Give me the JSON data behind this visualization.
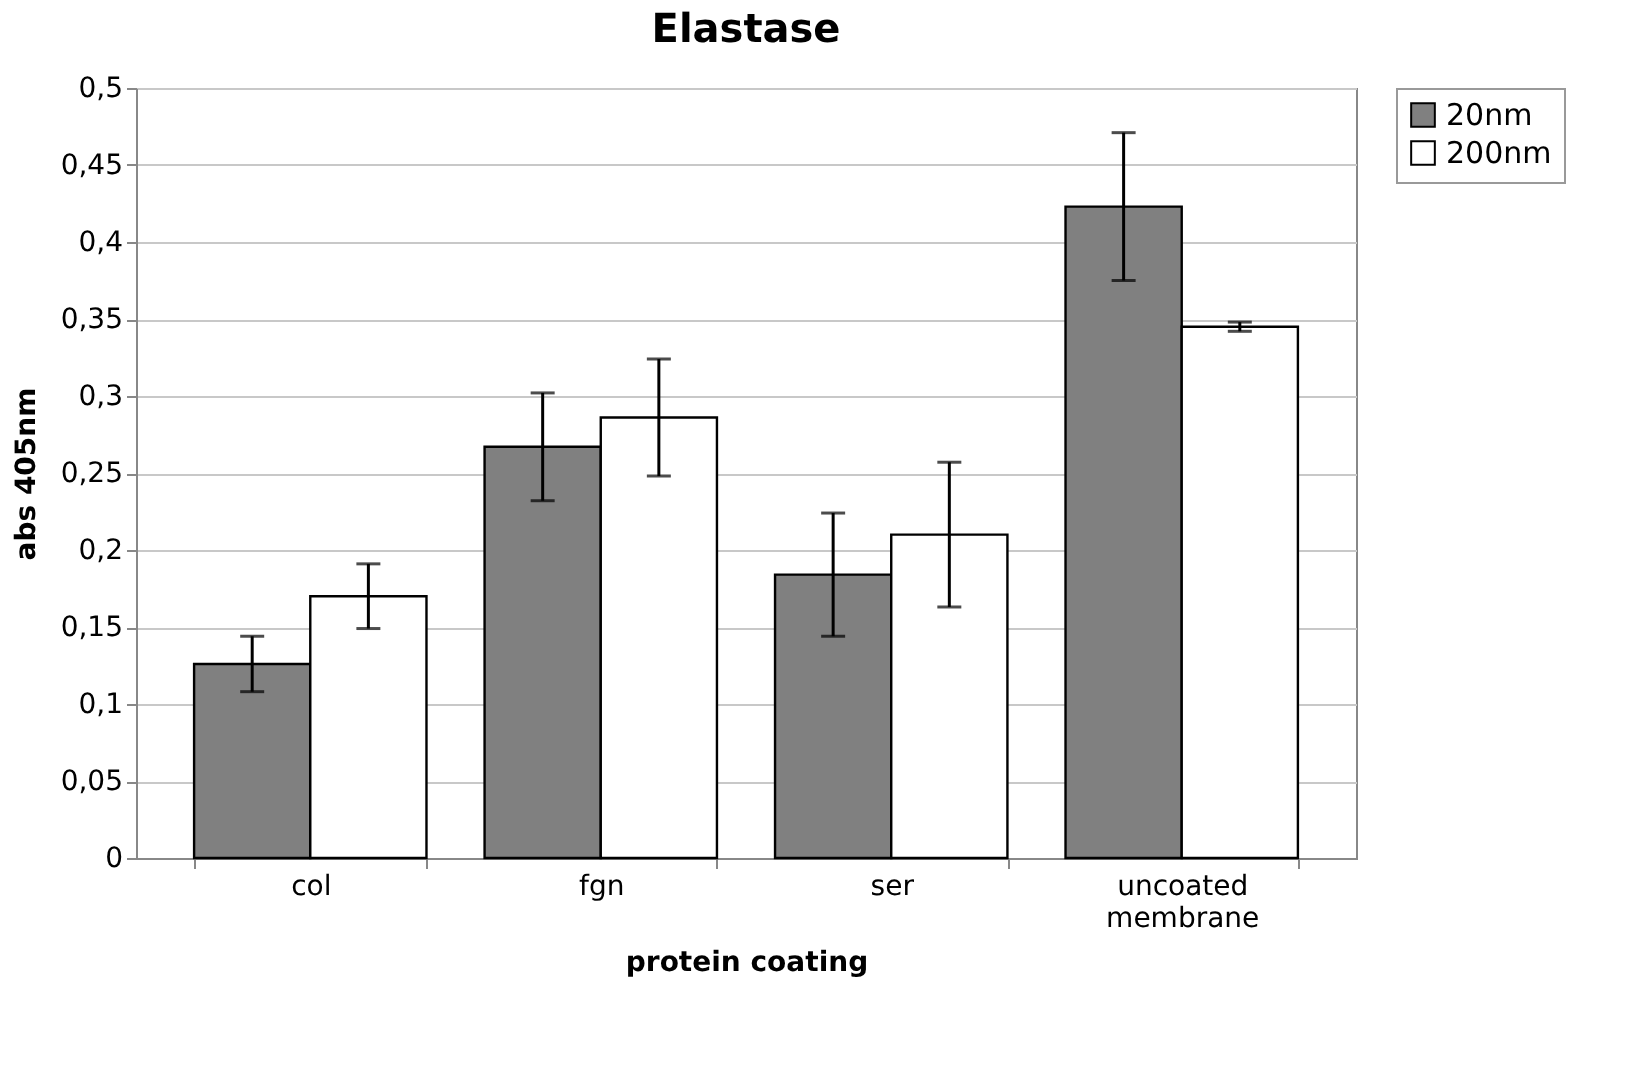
{
  "chart_data": {
    "type": "bar",
    "title": "Elastase",
    "xlabel": "protein coating",
    "ylabel": "abs 405nm",
    "categories": [
      "col",
      "fgn",
      "ser",
      "uncoated membrane"
    ],
    "series": [
      {
        "name": "20nm",
        "color": "#808080",
        "values": [
          0.126,
          0.267,
          0.184,
          0.423
        ],
        "errors": [
          0.018,
          0.035,
          0.04,
          0.048
        ]
      },
      {
        "name": "200nm",
        "color": "#ffffff",
        "values": [
          0.17,
          0.286,
          0.21,
          0.345
        ],
        "errors": [
          0.021,
          0.038,
          0.047,
          0.003
        ]
      }
    ],
    "ylim": [
      0,
      0.5
    ],
    "yticks": [
      0,
      {
        "value": 0.05,
        "label": "0,05"
      },
      {
        "value": 0.1,
        "label": "0,1"
      },
      {
        "value": 0.15,
        "label": "0,15"
      },
      {
        "value": 0.2,
        "label": "0,2"
      },
      {
        "value": 0.25,
        "label": "0,25"
      },
      {
        "value": 0.3,
        "label": "0,3"
      },
      {
        "value": 0.35,
        "label": "0,35"
      },
      {
        "value": 0.4,
        "label": "0,4"
      },
      {
        "value": 0.45,
        "label": "0,45"
      },
      {
        "value": 0.5,
        "label": "0,5"
      }
    ],
    "grid": "y",
    "legend": "right"
  }
}
